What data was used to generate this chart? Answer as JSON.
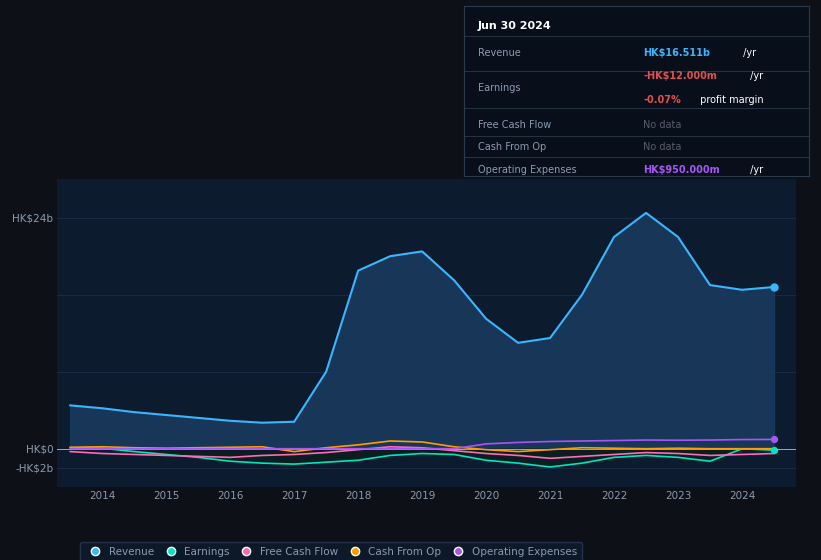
{
  "bg_color": "#0d1117",
  "plot_bg_color": "#0d1b2e",
  "grid_color": "#1e3050",
  "text_color": "#8a9bb0",
  "title_color": "#ffffff",
  "ylim_min": -4000000000.0,
  "ylim_max": 28000000000.0,
  "ytick_vals": [
    -2000000000.0,
    0,
    8000000000.0,
    16000000000.0,
    24000000000.0
  ],
  "ytick_labels": [
    "-HK$2b",
    "HK$0",
    "",
    "",
    "HK$24b"
  ],
  "years": [
    2013.5,
    2014.0,
    2014.5,
    2015.0,
    2015.5,
    2016.0,
    2016.5,
    2017.0,
    2017.5,
    2018.0,
    2018.5,
    2019.0,
    2019.5,
    2020.0,
    2020.5,
    2021.0,
    2021.5,
    2022.0,
    2022.5,
    2023.0,
    2023.5,
    2024.0,
    2024.5
  ],
  "revenue": [
    4500000000.0,
    4200000000.0,
    3800000000.0,
    3500000000.0,
    3200000000.0,
    2900000000.0,
    2700000000.0,
    2800000000.0,
    8000000000.0,
    18500000000.0,
    20000000000.0,
    20500000000.0,
    17500000000.0,
    13500000000.0,
    11000000000.0,
    11500000000.0,
    16000000000.0,
    22000000000.0,
    24500000000.0,
    22000000000.0,
    17000000000.0,
    16511000000.0,
    16800000000.0
  ],
  "earnings": [
    100000000.0,
    50000000.0,
    -300000000.0,
    -600000000.0,
    -900000000.0,
    -1300000000.0,
    -1500000000.0,
    -1600000000.0,
    -1400000000.0,
    -1200000000.0,
    -700000000.0,
    -500000000.0,
    -600000000.0,
    -1200000000.0,
    -1500000000.0,
    -1900000000.0,
    -1500000000.0,
    -900000000.0,
    -700000000.0,
    -900000000.0,
    -1300000000.0,
    -12000000.0,
    -150000000.0
  ],
  "free_cash_flow": [
    -300000000.0,
    -500000000.0,
    -600000000.0,
    -700000000.0,
    -800000000.0,
    -900000000.0,
    -700000000.0,
    -600000000.0,
    -400000000.0,
    -100000000.0,
    200000000.0,
    100000000.0,
    -200000000.0,
    -500000000.0,
    -700000000.0,
    -1000000000.0,
    -800000000.0,
    -600000000.0,
    -400000000.0,
    -500000000.0,
    -700000000.0,
    -600000000.0,
    -500000000.0
  ],
  "cash_from_op": [
    150000000.0,
    200000000.0,
    100000000.0,
    50000000.0,
    100000000.0,
    150000000.0,
    200000000.0,
    -300000000.0,
    100000000.0,
    400000000.0,
    800000000.0,
    700000000.0,
    200000000.0,
    -100000000.0,
    -300000000.0,
    -100000000.0,
    100000000.0,
    50000000.0,
    0.0,
    50000000.0,
    0.0,
    0.0,
    0.0
  ],
  "op_expenses": [
    0.0,
    0.0,
    0.0,
    0.0,
    0.0,
    0.0,
    0.0,
    0.0,
    0.0,
    0.0,
    0.0,
    0.0,
    0.0,
    500000000.0,
    650000000.0,
    750000000.0,
    800000000.0,
    850000000.0,
    900000000.0,
    880000000.0,
    900000000.0,
    950000000.0,
    960000000.0
  ],
  "revenue_color": "#38b6ff",
  "earnings_color": "#00e5c0",
  "free_cash_flow_color": "#ff6bb5",
  "cash_from_op_color": "#ff9d00",
  "op_expenses_color": "#a855f7",
  "fill_revenue_color": "#1a3a5c",
  "tooltip_bg": "#080f1a",
  "tooltip_border": "#2a3a4a",
  "legend_bg": "#0d1b2e",
  "legend_border": "#2a3a5a",
  "xlim_min": 2013.3,
  "xlim_max": 2024.85
}
